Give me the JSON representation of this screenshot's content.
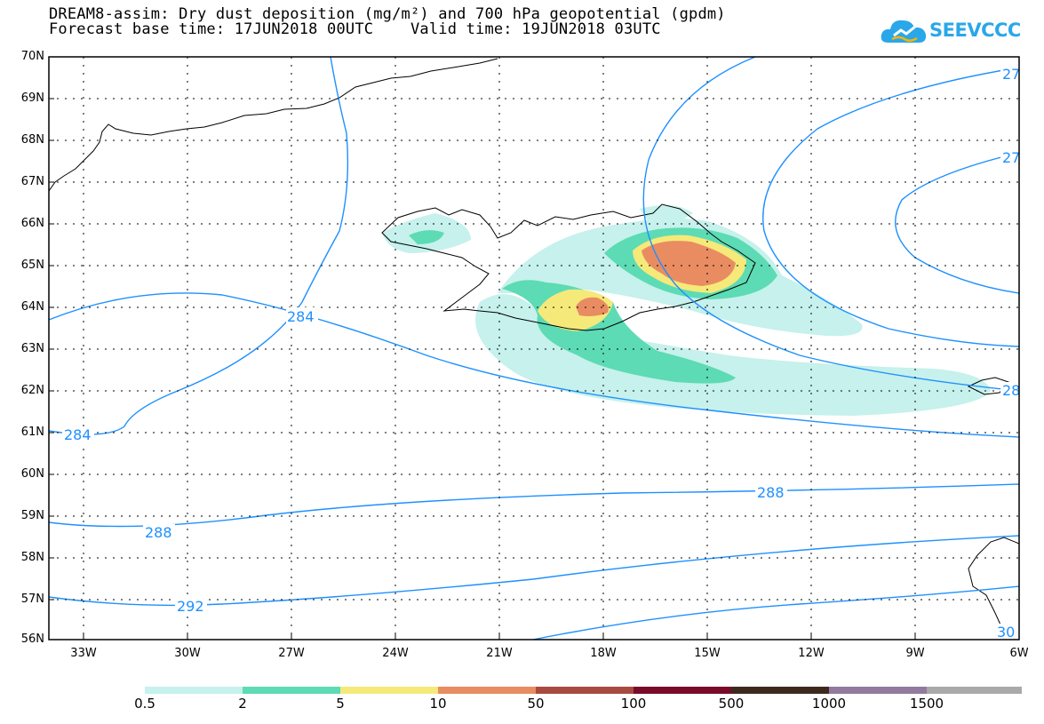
{
  "header": {
    "title_line1": "DREAM8-assim: Dry dust deposition (mg/m²) and 700 hPa geopotential (gpdm)",
    "title_line2": "Forecast base time: 17JUN2018 00UTC    Valid time: 19JUN2018 03UTC"
  },
  "logo": {
    "text": "SEEVCCC",
    "name": "cloud-icon"
  },
  "axes": {
    "lat_labels": [
      "70N",
      "69N",
      "68N",
      "67N",
      "66N",
      "65N",
      "64N",
      "63N",
      "62N",
      "61N",
      "60N",
      "59N",
      "58N",
      "57N",
      "56N"
    ],
    "lon_labels": [
      "33W",
      "30W",
      "27W",
      "24W",
      "21W",
      "18W",
      "15W",
      "12W",
      "9W",
      "6W"
    ]
  },
  "contours": {
    "labels": [
      "284",
      "284",
      "288",
      "288",
      "292",
      "27",
      "27",
      "28",
      "30"
    ],
    "color": "#1e90ff"
  },
  "colorbar": {
    "labels": [
      "0.5",
      "2",
      "5",
      "10",
      "50",
      "100",
      "500",
      "1000",
      "1500"
    ],
    "colors": [
      "#c6f1ec",
      "#5ddbb4",
      "#f5e97a",
      "#e98c62",
      "#a84a40",
      "#7a0a2a",
      "#3d2a1f",
      "#927a9e",
      "#a9a9a9"
    ]
  }
}
